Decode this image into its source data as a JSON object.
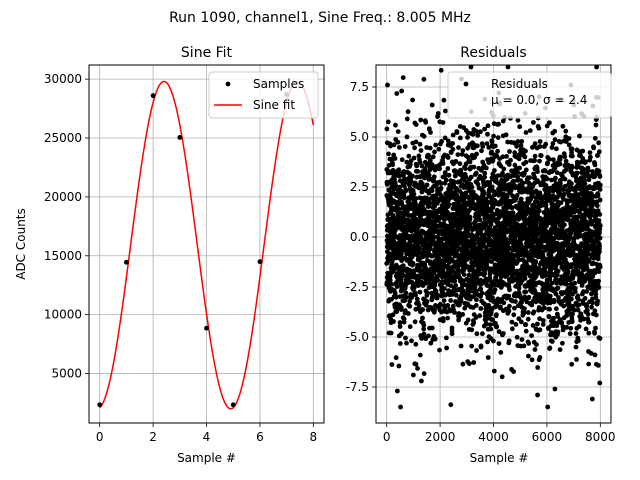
{
  "figure": {
    "suptitle": "Run 1090, channel1, Sine Freq.: 8.005 MHz"
  },
  "chart_data": [
    {
      "type": "line",
      "title": "Sine Fit",
      "xlabel": "Sample #",
      "ylabel": "ADC Counts",
      "xlim": [
        -0.4,
        8.4
      ],
      "ylim": [
        800,
        31200
      ],
      "xticks": [
        0,
        2,
        4,
        6,
        8
      ],
      "yticks": [
        5000,
        10000,
        15000,
        20000,
        25000,
        30000
      ],
      "grid": true,
      "legend_position": "top-right",
      "series": [
        {
          "name": "Samples",
          "style": "points",
          "color": "#000000",
          "x": [
            0,
            1,
            2,
            3,
            4,
            5,
            6,
            7
          ],
          "y": [
            2350,
            14450,
            28600,
            25050,
            8850,
            2350,
            14500,
            28700
          ]
        },
        {
          "name": "Sine fit",
          "style": "line",
          "color": "#ff0000",
          "model": {
            "offset": 15900,
            "amplitude": 13900,
            "freq_cycles_per_sample": 0.2001,
            "phase_rad": -1.456
          },
          "x_range": [
            0,
            8
          ]
        }
      ]
    },
    {
      "type": "scatter",
      "title": "Residuals",
      "xlabel": "Sample #",
      "legend_label": "Residuals\nμ = 0.0, σ = 2.4",
      "xlim": [
        -400,
        8400
      ],
      "ylim": [
        -9.3,
        8.6
      ],
      "xticks": [
        0,
        2000,
        4000,
        6000,
        8000
      ],
      "yticks": [
        -7.5,
        -5.0,
        -2.5,
        0.0,
        2.5,
        5.0,
        7.5
      ],
      "grid": true,
      "legend_position": "top-right",
      "series": [
        {
          "name": "Residuals",
          "color": "#000000",
          "n_points": 8000,
          "mean": 0.0,
          "std": 2.4,
          "max_abs": 8.5,
          "outliers": [
            {
              "x": 520,
              "y": -8.5
            },
            {
              "x": 400,
              "y": -7.7
            },
            {
              "x": 1000,
              "y": -6.9
            },
            {
              "x": 5650,
              "y": -7.9
            },
            {
              "x": 6300,
              "y": -7.6
            },
            {
              "x": 7700,
              "y": -8.1
            },
            {
              "x": 7980,
              "y": -7.3
            },
            {
              "x": 1300,
              "y": -7.2
            },
            {
              "x": 560,
              "y": 7.3
            },
            {
              "x": 2800,
              "y": 7.9
            },
            {
              "x": 4200,
              "y": 7.2
            },
            {
              "x": 6900,
              "y": 7.6
            }
          ]
        }
      ]
    }
  ]
}
